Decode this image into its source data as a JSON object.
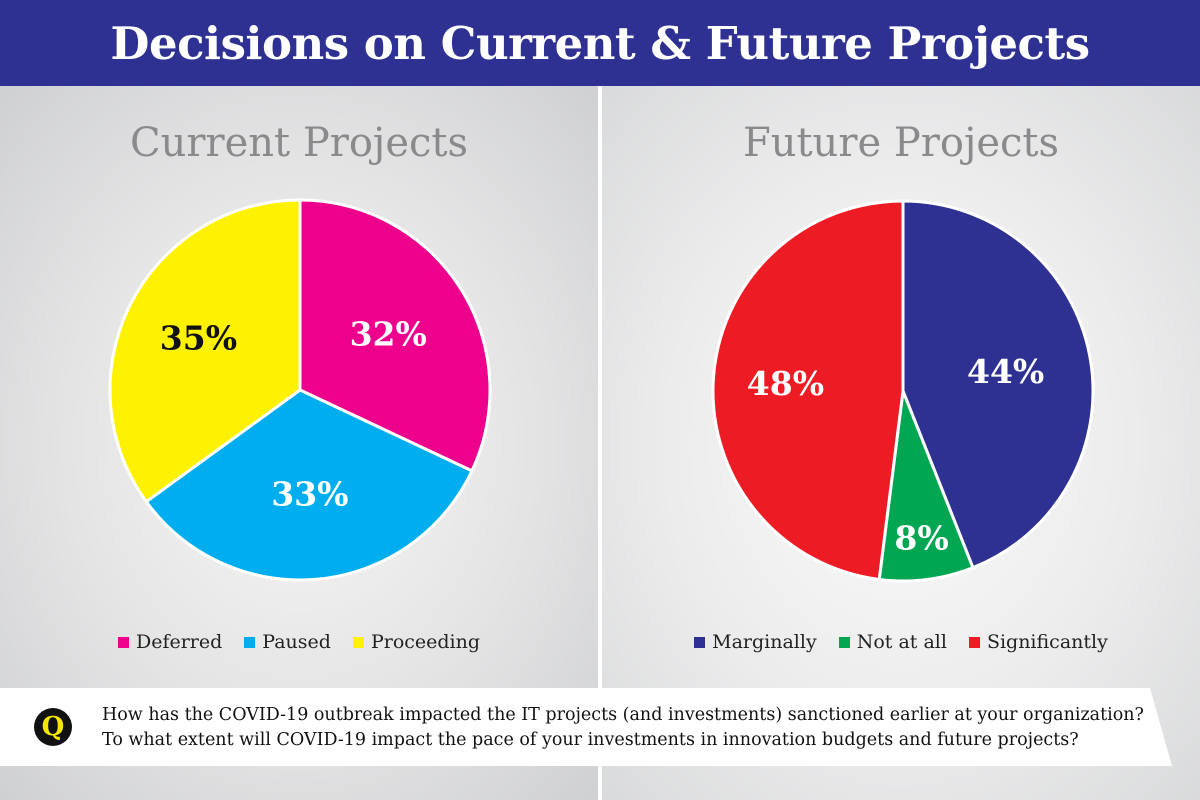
{
  "header": {
    "title": "Decisions on Current & Future Projects"
  },
  "colors": {
    "header_bg": "#2e3192",
    "deferred": "#ec008c",
    "paused": "#00aeef",
    "proceeding": "#fff200",
    "marginally": "#2e3192",
    "not_at_all": "#00a651",
    "significantly": "#ed1c24",
    "q_icon": "#f5e600"
  },
  "chart_data": [
    {
      "type": "pie",
      "title": "Current Projects",
      "slices": [
        {
          "name": "Deferred",
          "value": 32,
          "label": "32%",
          "color": "#ec008c",
          "text_color": "#ffffff"
        },
        {
          "name": "Paused",
          "value": 33,
          "label": "33%",
          "color": "#00aeef",
          "text_color": "#ffffff"
        },
        {
          "name": "Proceeding",
          "value": 35,
          "label": "35%",
          "color": "#fff200",
          "text_color": "#111111"
        }
      ],
      "legend": [
        "Deferred",
        "Paused",
        "Proceeding"
      ],
      "legend_position": "bottom"
    },
    {
      "type": "pie",
      "title": "Future Projects",
      "slices": [
        {
          "name": "Marginally",
          "value": 44,
          "label": "44%",
          "color": "#2e3192",
          "text_color": "#ffffff"
        },
        {
          "name": "Not at all",
          "value": 8,
          "label": "8%",
          "color": "#00a651",
          "text_color": "#ffffff"
        },
        {
          "name": "Significantly",
          "value": 48,
          "label": "48%",
          "color": "#ed1c24",
          "text_color": "#ffffff"
        }
      ],
      "legend": [
        "Marginally",
        "Not at all",
        "Significantly"
      ],
      "legend_position": "bottom"
    }
  ],
  "question": {
    "icon_letter": "Q",
    "line1": "How has the COVID-19 outbreak impacted the IT projects (and investments) sanctioned earlier at your organization?",
    "line2": "To what extent will COVID-19 impact the pace of your investments in innovation budgets and future projects?"
  }
}
